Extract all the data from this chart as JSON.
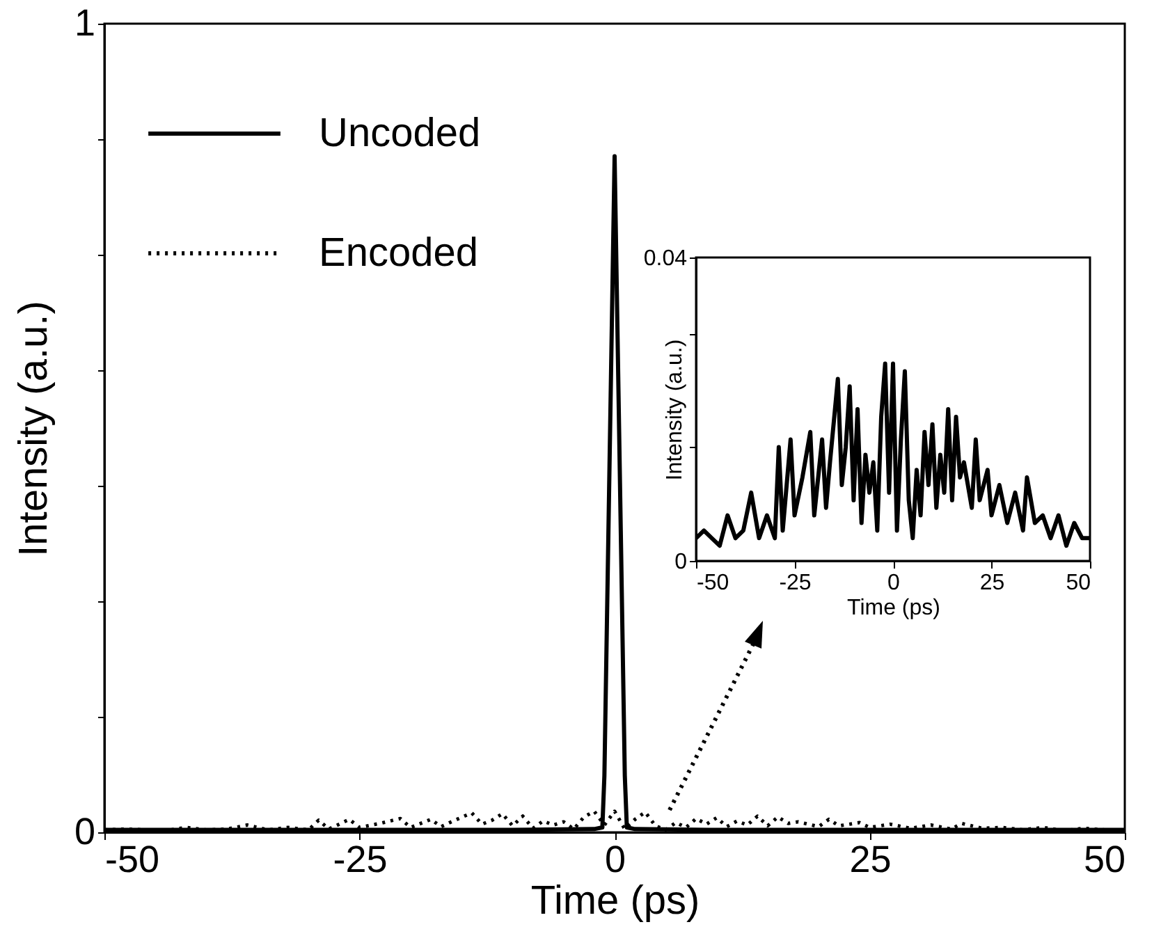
{
  "chart_data": [
    {
      "type": "line",
      "xlabel": "Time (ps)",
      "ylabel": "Intensity (a.u.)",
      "xlim": [
        -50,
        50
      ],
      "ylim": [
        0,
        1
      ],
      "xticks": [
        -50,
        -25,
        0,
        25,
        50
      ],
      "yticks": [
        0,
        {
          "value": 0.143,
          "label": null
        },
        {
          "value": 0.286,
          "label": null
        },
        {
          "value": 0.429,
          "label": null
        },
        {
          "value": 0.571,
          "label": null
        },
        {
          "value": 0.714,
          "label": null
        },
        {
          "value": 0.857,
          "label": null
        },
        1
      ],
      "grid": false,
      "legend": "top left",
      "series": [
        {
          "name": "Uncoded",
          "color": "#000000",
          "line_style": "solid",
          "x": [
            -50,
            -40,
            -30,
            -20,
            -10,
            -2,
            -1.2,
            -1,
            0,
            1,
            1.2,
            2,
            10,
            20,
            30,
            40,
            50
          ],
          "values": [
            0.003,
            0.003,
            0.003,
            0.003,
            0.003,
            0.004,
            0.006,
            0.07,
            0.836,
            0.07,
            0.006,
            0.004,
            0.003,
            0.003,
            0.003,
            0.003,
            0.003
          ]
        },
        {
          "name": "Encoded",
          "color": "#000000",
          "line_style": "dotted",
          "x": [
            -50,
            -48,
            -46,
            -44,
            -42,
            -40,
            -38,
            -36,
            -34,
            -32,
            -30,
            -29,
            -28,
            -26,
            -25,
            -23,
            -21,
            -20,
            -18,
            -17,
            -16,
            -14,
            -13,
            -12,
            -11,
            -10,
            -9,
            -8,
            -7,
            -6,
            -5,
            -4,
            -3,
            -2,
            -1,
            0,
            1,
            2,
            3,
            4,
            5,
            6,
            7,
            8,
            9,
            10,
            11,
            12,
            13,
            14,
            15,
            16,
            17,
            18,
            20,
            21,
            22,
            24,
            25,
            27,
            29,
            31,
            33,
            34,
            36,
            38,
            40,
            42,
            44,
            46,
            48,
            50
          ],
          "values": [
            0.003,
            0.004,
            0.003,
            0.002,
            0.006,
            0.003,
            0.004,
            0.009,
            0.003,
            0.006,
            0.003,
            0.015,
            0.004,
            0.016,
            0.006,
            0.011,
            0.017,
            0.006,
            0.016,
            0.007,
            0.013,
            0.024,
            0.01,
            0.015,
            0.023,
            0.008,
            0.02,
            0.005,
            0.014,
            0.009,
            0.013,
            0.004,
            0.019,
            0.026,
            0.009,
            0.026,
            0.004,
            0.016,
            0.025,
            0.008,
            0.003,
            0.012,
            0.006,
            0.017,
            0.01,
            0.018,
            0.007,
            0.014,
            0.009,
            0.02,
            0.008,
            0.019,
            0.011,
            0.013,
            0.007,
            0.016,
            0.008,
            0.012,
            0.006,
            0.01,
            0.005,
            0.009,
            0.004,
            0.011,
            0.005,
            0.006,
            0.003,
            0.006,
            0.002,
            0.005,
            0.003,
            0.003
          ]
        }
      ]
    },
    {
      "type": "line",
      "xlabel": "Time (ps)",
      "ylabel": "Intensity (a.u.)",
      "xlim": [
        -50,
        50
      ],
      "ylim": [
        0,
        0.04
      ],
      "xticks": [
        -50,
        -25,
        0,
        25,
        50
      ],
      "yticks": [
        0,
        {
          "value": 0.015,
          "label": null
        },
        {
          "value": 0.03,
          "label": null
        },
        0.04
      ],
      "grid": false,
      "series": [
        {
          "color": "#000000",
          "line_style": "solid",
          "x": [
            -50,
            -48,
            -46,
            -44,
            -42,
            -40,
            -38,
            -36,
            -34,
            -32,
            -30,
            -29,
            -28,
            -26,
            -25,
            -23,
            -21,
            -20,
            -18,
            -17,
            -16,
            -14,
            -13,
            -12,
            -11,
            -10,
            -9,
            -8,
            -7,
            -6,
            -5,
            -4,
            -3,
            -2,
            -1,
            0,
            1,
            2,
            3,
            4,
            5,
            6,
            7,
            8,
            9,
            10,
            11,
            12,
            13,
            14,
            15,
            16,
            17,
            18,
            20,
            21,
            22,
            24,
            25,
            27,
            29,
            31,
            33,
            34,
            36,
            38,
            40,
            42,
            44,
            46,
            48,
            50
          ],
          "values": [
            0.003,
            0.004,
            0.003,
            0.002,
            0.006,
            0.003,
            0.004,
            0.009,
            0.003,
            0.006,
            0.003,
            0.015,
            0.004,
            0.016,
            0.006,
            0.011,
            0.017,
            0.006,
            0.016,
            0.007,
            0.013,
            0.024,
            0.01,
            0.015,
            0.023,
            0.008,
            0.02,
            0.005,
            0.014,
            0.009,
            0.013,
            0.004,
            0.019,
            0.026,
            0.009,
            0.026,
            0.004,
            0.016,
            0.025,
            0.008,
            0.003,
            0.012,
            0.006,
            0.017,
            0.01,
            0.018,
            0.007,
            0.014,
            0.009,
            0.02,
            0.008,
            0.019,
            0.011,
            0.013,
            0.007,
            0.016,
            0.008,
            0.012,
            0.006,
            0.01,
            0.005,
            0.009,
            0.004,
            0.011,
            0.005,
            0.006,
            0.003,
            0.006,
            0.002,
            0.005,
            0.003,
            0.003
          ]
        }
      ]
    }
  ]
}
